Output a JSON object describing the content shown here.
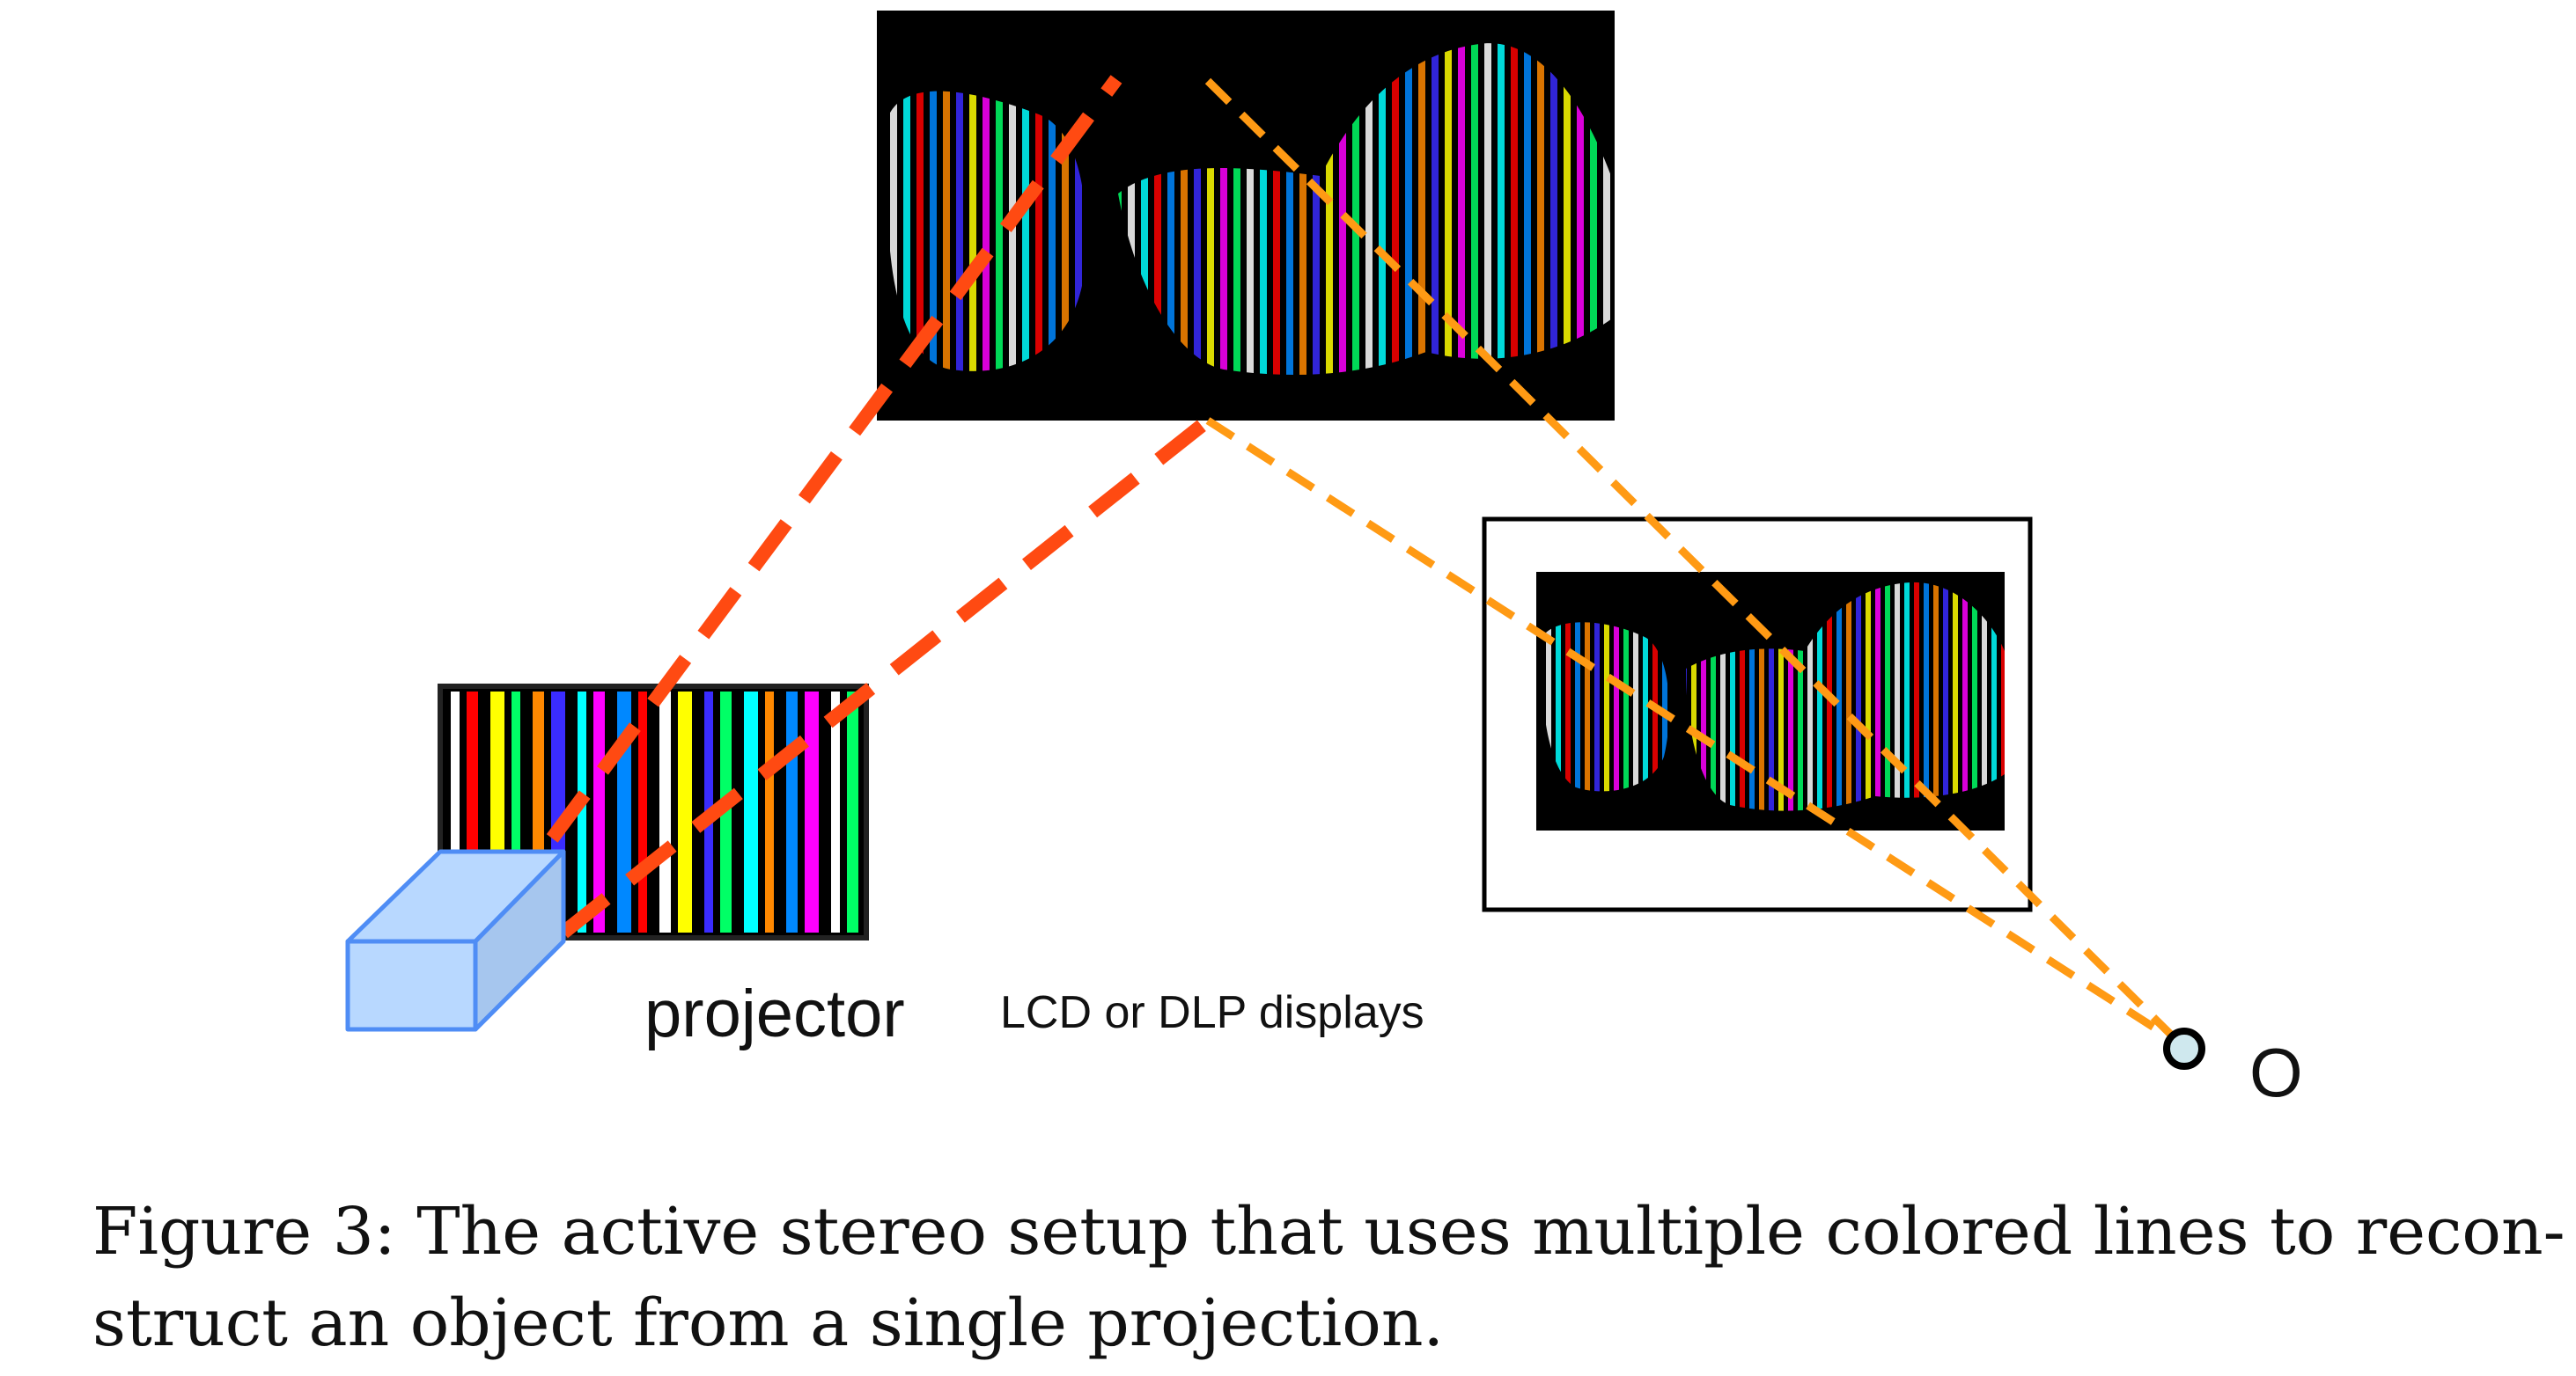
{
  "labels": {
    "projector": "projector",
    "displays": "LCD or DLP displays",
    "observer": "O"
  },
  "caption": {
    "line1": "Figure 3: The active stereo setup that uses multiple colored lines to recon-",
    "line2": "struct an object from a single projection."
  },
  "colors": {
    "projector_rays": "#ff4a12",
    "camera_rays": "#ff9a14",
    "projector_box_face": "#b8d8ff",
    "projector_box_edge": "#4f8df5",
    "camera_center_fill": "#cfe8ee",
    "stripe_palette": [
      "#ff0000",
      "#ff8800",
      "#ffff00",
      "#00ff66",
      "#00ffff",
      "#0088ff",
      "#3a2cff",
      "#ff00ff",
      "#ffffff"
    ]
  },
  "icons": {
    "scene_image": "striped-hands-photo",
    "camera_image": "striped-hands-photo-small",
    "projector_device": "projector-box-icon",
    "projected_pattern": "color-stripe-pattern",
    "camera_center": "camera-center-icon"
  }
}
